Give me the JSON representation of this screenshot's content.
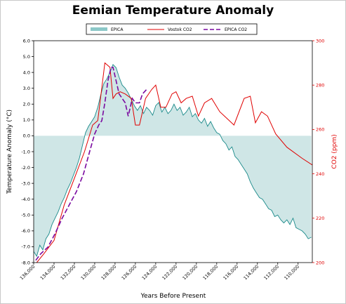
{
  "chart_data": {
    "type": "line",
    "title": "Eemian Temperature Anomaly",
    "xlabel": "Years Before Present",
    "ylabel": "Temperature Anomaly (°C)",
    "y2label": "CO2 (ppm)",
    "xlim": [
      136000,
      108600
    ],
    "ylim": [
      -8.0,
      6.0
    ],
    "y2lim": [
      200,
      300
    ],
    "x_ticks": [
      "136,000",
      "134,000",
      "132,000",
      "130,000",
      "128,000",
      "126,000",
      "124,000",
      "122,000",
      "120,000",
      "118,000",
      "116,000",
      "114,000",
      "112,000",
      "110,000"
    ],
    "y_ticks": [
      "-8.0",
      "-7.0",
      "-6.0",
      "-5.0",
      "-4.0",
      "-3.0",
      "-2.0",
      "-1.0",
      "0.0",
      "1.0",
      "2.0",
      "3.0",
      "4.0",
      "5.0",
      "6.0"
    ],
    "y2_ticks": [
      "200",
      "220",
      "240",
      "260",
      "280",
      "300"
    ],
    "legend": {
      "placement": "top-center",
      "entries": [
        "EPICA",
        "Vostok CO2",
        "EPICA CO2"
      ]
    },
    "colors": {
      "epica_line": "#1a8a8a",
      "epica_fill": "#cfe6e6",
      "vostok": "#e00000",
      "epica_co2": "#7a0aa0"
    },
    "series": [
      {
        "name": "EPICA",
        "axis": "left",
        "x": [
          136000,
          135700,
          135400,
          135100,
          134800,
          134500,
          134200,
          133900,
          133600,
          133300,
          133000,
          132700,
          132400,
          132100,
          131800,
          131500,
          131200,
          130900,
          130600,
          130300,
          130000,
          129700,
          129400,
          129100,
          128800,
          128500,
          128200,
          127900,
          127600,
          127300,
          127000,
          126700,
          126400,
          126100,
          125800,
          125500,
          125200,
          124900,
          124600,
          124300,
          124000,
          123700,
          123400,
          123100,
          122800,
          122500,
          122200,
          121900,
          121600,
          121300,
          121000,
          120700,
          120400,
          120100,
          119800,
          119500,
          119200,
          118900,
          118600,
          118300,
          118000,
          117700,
          117400,
          117100,
          116800,
          116500,
          116200,
          115900,
          115600,
          115300,
          115000,
          114700,
          114400,
          114100,
          113800,
          113500,
          113200,
          112900,
          112600,
          112300,
          112000,
          111700,
          111400,
          111100,
          110800,
          110500,
          110200,
          109900,
          109600,
          109300,
          109000,
          108700
        ],
        "values": [
          -7.3,
          -7.6,
          -6.9,
          -7.2,
          -6.5,
          -6.2,
          -5.6,
          -5.2,
          -4.8,
          -4.3,
          -3.9,
          -3.4,
          -3.0,
          -2.5,
          -2.0,
          -1.4,
          -0.6,
          0.2,
          0.6,
          0.9,
          1.2,
          1.8,
          2.6,
          3.3,
          3.6,
          4.0,
          4.5,
          4.3,
          3.7,
          3.2,
          3.0,
          2.7,
          2.3,
          1.9,
          1.6,
          1.9,
          1.4,
          1.8,
          1.6,
          1.3,
          1.9,
          2.1,
          1.5,
          1.8,
          1.4,
          1.6,
          2.0,
          1.6,
          1.8,
          1.3,
          1.5,
          1.8,
          1.2,
          1.4,
          1.0,
          0.8,
          1.1,
          0.6,
          0.9,
          0.5,
          0.2,
          0.1,
          -0.3,
          -0.5,
          -0.9,
          -0.7,
          -1.3,
          -1.5,
          -1.8,
          -2.1,
          -2.4,
          -2.9,
          -3.3,
          -3.6,
          -3.9,
          -4.0,
          -4.3,
          -4.6,
          -4.7,
          -5.1,
          -5.0,
          -5.3,
          -5.5,
          -5.3,
          -5.6,
          -5.2,
          -5.8,
          -5.9,
          -6.0,
          -6.2,
          -6.5,
          -6.4
        ]
      },
      {
        "name": "Vostok CO2",
        "axis": "right",
        "x": [
          135700,
          135000,
          134000,
          133000,
          132000,
          131000,
          130200,
          129700,
          129000,
          128500,
          128200,
          127900,
          127500,
          127000,
          126400,
          126000,
          125600,
          125000,
          124400,
          124000,
          123500,
          123000,
          122400,
          122000,
          121500,
          121000,
          120400,
          119800,
          119200,
          118500,
          117700,
          117000,
          116300,
          115300,
          114700,
          114200,
          113600,
          113000,
          112200,
          111100,
          109600,
          108600
        ],
        "values": [
          200,
          204,
          210,
          226,
          238,
          250,
          262,
          264,
          290,
          288,
          274,
          276,
          277,
          276,
          274,
          262,
          262,
          274,
          278,
          280,
          270,
          270,
          276,
          277,
          272,
          274,
          275,
          266,
          272,
          274,
          268,
          265,
          262,
          274,
          275,
          263,
          268,
          266,
          258,
          252,
          247,
          244
        ]
      },
      {
        "name": "EPICA CO2",
        "axis": "right",
        "x": [
          135800,
          135300,
          134600,
          133900,
          133200,
          132500,
          131800,
          131100,
          130500,
          130000,
          129600,
          129300,
          129000,
          128700,
          128400,
          128200,
          127900,
          127600,
          127300,
          127000,
          126700,
          126300,
          126000,
          125600,
          125300,
          125100,
          124900
        ],
        "values": [
          201,
          204,
          207,
          213,
          220,
          226,
          232,
          240,
          250,
          258,
          262,
          264,
          272,
          282,
          288,
          288,
          282,
          276,
          274,
          272,
          266,
          274,
          272,
          272,
          276,
          277,
          278
        ]
      }
    ]
  }
}
